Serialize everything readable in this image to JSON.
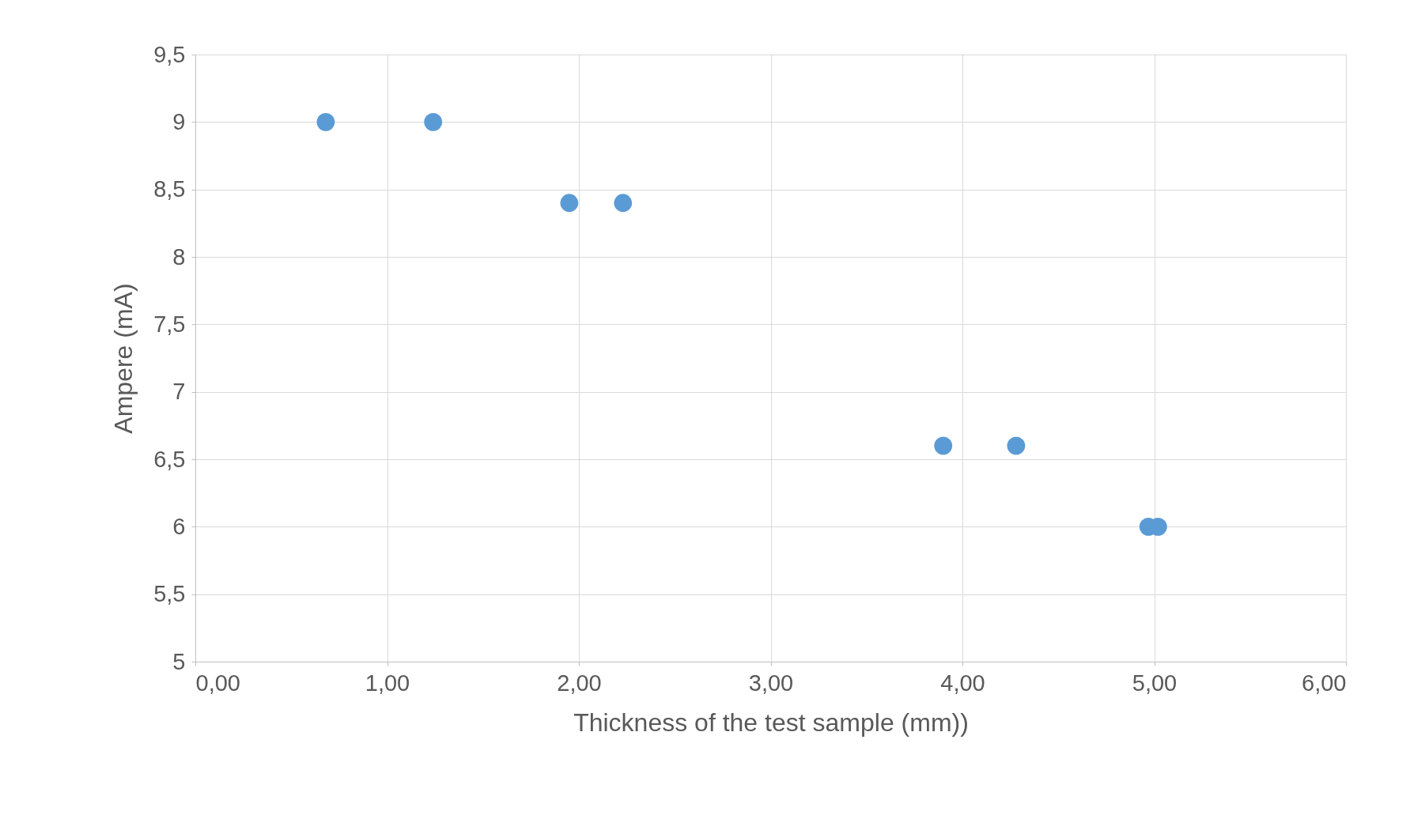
{
  "chart_data": {
    "type": "scatter",
    "xlabel": "Thickness of the test sample (mm))",
    "ylabel": "Ampere (mA)",
    "x": [
      0.68,
      1.24,
      1.95,
      2.23,
      3.9,
      4.28,
      4.97,
      5.02
    ],
    "series": [
      {
        "color": "#5b9bd5",
        "values": [
          9,
          9,
          8.4,
          8.4,
          6.6,
          6.6,
          6,
          6
        ]
      }
    ],
    "xlim": [
      0,
      6
    ],
    "xticks": [
      {
        "value": 0,
        "label": "0,00"
      },
      {
        "value": 1,
        "label": "1,00"
      },
      {
        "value": 2,
        "label": "2,00"
      },
      {
        "value": 3,
        "label": "3,00"
      },
      {
        "value": 4,
        "label": "4,00"
      },
      {
        "value": 5,
        "label": "5,00"
      },
      {
        "value": 6,
        "label": "6,00"
      }
    ],
    "ylim": [
      5,
      9.5
    ],
    "yticks": [
      5,
      {
        "value": 5.5,
        "label": "5,5"
      },
      6,
      {
        "value": 6.5,
        "label": "6,5"
      },
      7,
      {
        "value": 7.5,
        "label": "7,5"
      },
      8,
      {
        "value": 8.5,
        "label": "8,5"
      },
      9,
      {
        "value": 9.5,
        "label": "9,5"
      }
    ],
    "grid": true,
    "marker": "circle"
  }
}
